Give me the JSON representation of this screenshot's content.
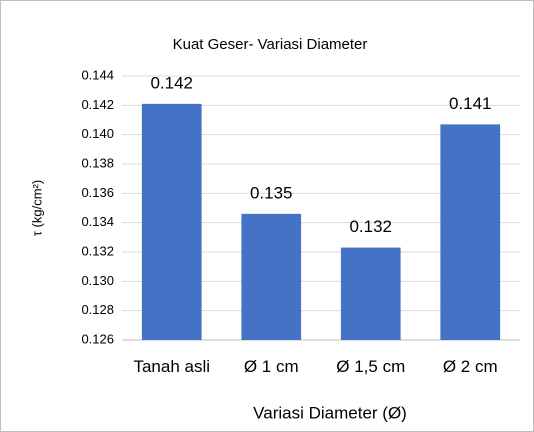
{
  "chart_data": {
    "type": "bar",
    "title": "Kuat Geser- Variasi Diameter",
    "xlabel": "Variasi Diameter (Ø)",
    "ylabel": "τ (kg/cm²)",
    "categories": [
      "Tanah asli",
      "Ø 1 cm",
      "Ø 1,5 cm",
      "Ø 2 cm"
    ],
    "values": [
      0.1421,
      0.1346,
      0.1323,
      0.1407
    ],
    "value_labels": [
      "0.142",
      "0.135",
      "0.132",
      "0.141"
    ],
    "color": "#4472c4",
    "ylim": [
      0.126,
      0.144
    ],
    "yticks": [
      0.126,
      0.128,
      {
        "value": 0.13,
        "label": "0.130"
      },
      0.132,
      0.134,
      0.136,
      0.138,
      {
        "value": 0.14,
        "label": "0.140"
      },
      0.142,
      0.144
    ],
    "grid": true
  }
}
